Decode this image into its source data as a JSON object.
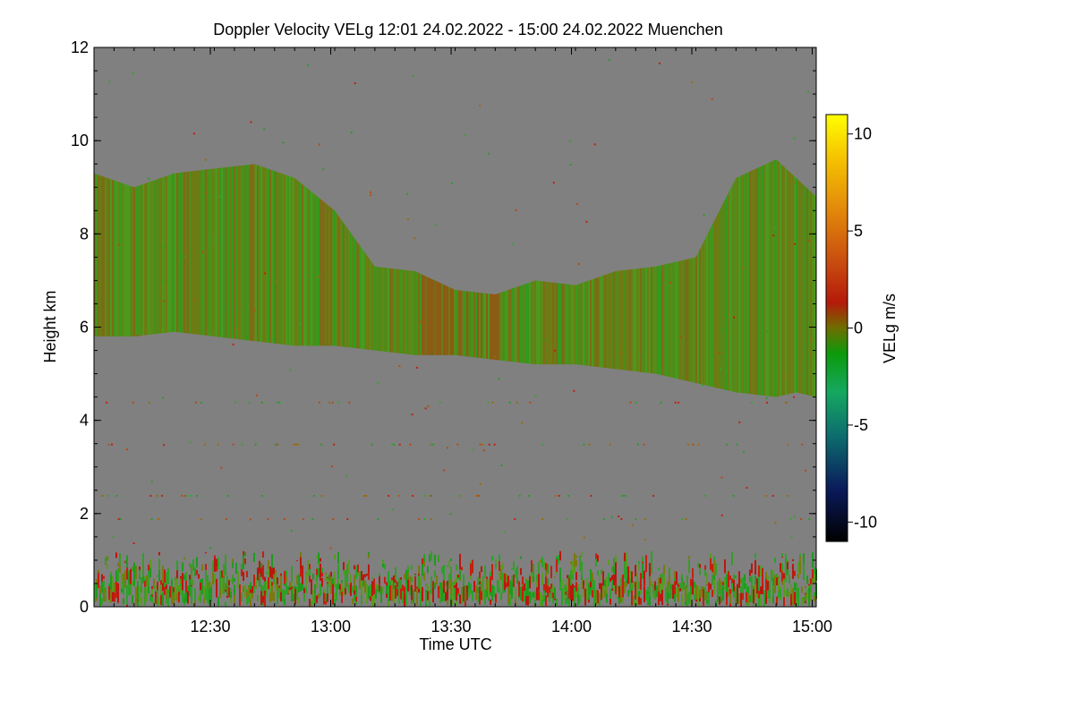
{
  "chart_data": {
    "type": "heatmap",
    "title": "Doppler Velocity VELg   12:01 24.02.2022 - 15:00 24.02.2022 Muenchen",
    "xlabel": "Time UTC",
    "ylabel": "Height km",
    "xlim": [
      "12:01",
      "15:01"
    ],
    "ylim": [
      0,
      12
    ],
    "x_ticks": [
      "12:30",
      "13:00",
      "13:30",
      "14:00",
      "14:30",
      "15:00"
    ],
    "y_ticks": [
      "0",
      "2",
      "4",
      "6",
      "8",
      "10",
      "12"
    ],
    "colorbar": {
      "label": "VELg m/s",
      "range": [
        -11,
        11
      ],
      "ticks": [
        "10",
        "5",
        "0",
        "-5",
        "-10"
      ]
    },
    "background_value_color": "#808080",
    "features": [
      {
        "name": "Upper cloud layer",
        "velocity": "approx -1 to +1 m/s",
        "top_km": [
          9.3,
          9.0,
          9.3,
          9.4,
          9.5,
          9.2,
          8.5,
          7.3,
          7.2,
          6.8,
          6.7,
          7.0,
          6.9,
          7.2,
          7.3,
          7.5,
          9.2,
          9.6,
          9.2,
          8.8
        ],
        "base_km": [
          5.8,
          5.8,
          5.9,
          5.8,
          5.7,
          5.6,
          5.6,
          5.5,
          5.4,
          5.4,
          5.3,
          5.2,
          5.2,
          5.1,
          5.0,
          4.8,
          4.6,
          4.5,
          4.6,
          4.5
        ],
        "sample_minutes": [
          0,
          10,
          20,
          30,
          40,
          50,
          60,
          70,
          80,
          90,
          100,
          110,
          120,
          130,
          140,
          150,
          160,
          170,
          175,
          180
        ]
      },
      {
        "name": "Low-level scatter",
        "velocity": "approx -2 to +3 m/s",
        "height_km": [
          0,
          1.2
        ]
      }
    ]
  }
}
